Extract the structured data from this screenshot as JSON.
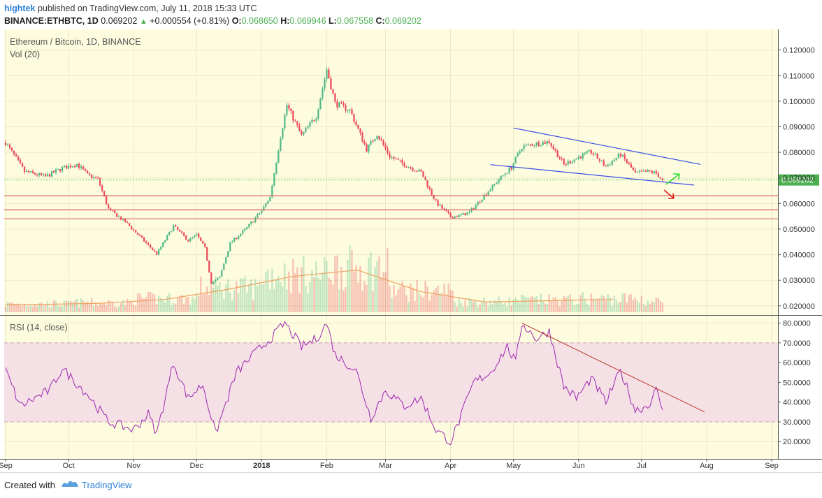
{
  "header": {
    "author": "hightek",
    "published_text": "published on TradingView.com, July 11, 2018 15:33 UTC",
    "symbol_line": "BINANCE:ETHBTC, 1D",
    "last": "0.069202",
    "change": "+0.000554 (+0.81%)",
    "o_label": "O:",
    "o": "0.068650",
    "h_label": "H:",
    "h": "0.069946",
    "l_label": "L:",
    "l": "0.067558",
    "c_label": "C:",
    "c": "0.069202"
  },
  "footer": {
    "created_with": "Created with",
    "brand": "TradingView"
  },
  "colors": {
    "up": "#53b987",
    "down": "#eb4d5c",
    "background": "#fdfcdf",
    "rsi_line": "#9c27b0",
    "rsi_band": "#f5e0e6",
    "trendline": "#3a4ce6",
    "support": "#e06060",
    "current_price_line": "#6ecb63",
    "price_label": "#4caf50"
  },
  "chart_data": [
    {
      "type": "candlestick",
      "title": "Ethereum / Bitcoin, 1D, BINANCE",
      "volume_label": "Vol (20)",
      "x_ticks": [
        "Sep",
        "Oct",
        "Nov",
        "Dec",
        "2018",
        "Feb",
        "Mar",
        "Apr",
        "May",
        "Jun",
        "Jul",
        "Aug",
        "Sep"
      ],
      "y_ticks": [
        "0.120000",
        "0.110000",
        "0.100000",
        "0.090000",
        "0.080000",
        "0.070000",
        "0.060000",
        "0.050000",
        "0.040000",
        "0.030000",
        "0.020000"
      ],
      "ylim": [
        0.0175,
        0.127
      ],
      "current_price": "0.069202",
      "key_points": [
        {
          "date": "2017-09-01",
          "close": 0.0838
        },
        {
          "date": "2017-09-10",
          "close": 0.0725
        },
        {
          "date": "2017-09-20",
          "close": 0.0705
        },
        {
          "date": "2017-09-28",
          "close": 0.0738
        },
        {
          "date": "2017-10-05",
          "close": 0.0755
        },
        {
          "date": "2017-10-10",
          "close": 0.0712
        },
        {
          "date": "2017-10-15",
          "close": 0.0695
        },
        {
          "date": "2017-10-20",
          "close": 0.0578
        },
        {
          "date": "2017-10-28",
          "close": 0.0528
        },
        {
          "date": "2017-11-05",
          "close": 0.0462
        },
        {
          "date": "2017-11-12",
          "close": 0.0403
        },
        {
          "date": "2017-11-20",
          "close": 0.0512
        },
        {
          "date": "2017-11-27",
          "close": 0.0455
        },
        {
          "date": "2017-12-01",
          "close": 0.0478
        },
        {
          "date": "2017-12-05",
          "close": 0.0425
        },
        {
          "date": "2017-12-08",
          "close": 0.0288
        },
        {
          "date": "2017-12-12",
          "close": 0.0312
        },
        {
          "date": "2017-12-17",
          "close": 0.0445
        },
        {
          "date": "2017-12-25",
          "close": 0.0505
        },
        {
          "date": "2018-01-01",
          "close": 0.0572
        },
        {
          "date": "2018-01-05",
          "close": 0.0625
        },
        {
          "date": "2018-01-10",
          "close": 0.0862
        },
        {
          "date": "2018-01-13",
          "close": 0.0985
        },
        {
          "date": "2018-01-20",
          "close": 0.0865
        },
        {
          "date": "2018-01-27",
          "close": 0.0942
        },
        {
          "date": "2018-02-01",
          "close": 0.1125
        },
        {
          "date": "2018-02-05",
          "close": 0.0992
        },
        {
          "date": "2018-02-12",
          "close": 0.0965
        },
        {
          "date": "2018-02-20",
          "close": 0.0812
        },
        {
          "date": "2018-02-25",
          "close": 0.0872
        },
        {
          "date": "2018-03-03",
          "close": 0.0785
        },
        {
          "date": "2018-03-10",
          "close": 0.0752
        },
        {
          "date": "2018-03-18",
          "close": 0.0722
        },
        {
          "date": "2018-03-25",
          "close": 0.0605
        },
        {
          "date": "2018-04-01",
          "close": 0.0548
        },
        {
          "date": "2018-04-05",
          "close": 0.0552
        },
        {
          "date": "2018-04-10",
          "close": 0.0565
        },
        {
          "date": "2018-04-17",
          "close": 0.0632
        },
        {
          "date": "2018-04-25",
          "close": 0.0702
        },
        {
          "date": "2018-04-30",
          "close": 0.0742
        },
        {
          "date": "2018-05-05",
          "close": 0.0822
        },
        {
          "date": "2018-05-12",
          "close": 0.0835
        },
        {
          "date": "2018-05-18",
          "close": 0.0842
        },
        {
          "date": "2018-05-25",
          "close": 0.0752
        },
        {
          "date": "2018-05-31",
          "close": 0.0778
        },
        {
          "date": "2018-06-07",
          "close": 0.0802
        },
        {
          "date": "2018-06-14",
          "close": 0.0745
        },
        {
          "date": "2018-06-21",
          "close": 0.0792
        },
        {
          "date": "2018-06-28",
          "close": 0.0718
        },
        {
          "date": "2018-07-05",
          "close": 0.0725
        },
        {
          "date": "2018-07-08",
          "close": 0.0718
        },
        {
          "date": "2018-07-11",
          "close": 0.0692
        }
      ],
      "volume_ma": [
        0.0205,
        0.021,
        0.0225,
        0.0265,
        0.0315,
        0.034,
        0.0255,
        0.0215,
        0.022,
        0.0225,
        0.0215,
        0.021
      ]
    },
    {
      "type": "line",
      "title": "RSI (14, close)",
      "y_ticks": [
        "80.0000",
        "70.0000",
        "60.0000",
        "50.0000",
        "40.0000",
        "30.0000",
        "20.0000"
      ],
      "ylim": [
        13,
        82
      ],
      "band": [
        30,
        70
      ],
      "key_points": [
        {
          "date": "2017-09-01",
          "value": 56
        },
        {
          "date": "2017-09-08",
          "value": 38
        },
        {
          "date": "2017-09-22",
          "value": 46
        },
        {
          "date": "2017-09-28",
          "value": 57
        },
        {
          "date": "2017-10-10",
          "value": 44
        },
        {
          "date": "2017-10-20",
          "value": 30
        },
        {
          "date": "2017-11-01",
          "value": 26
        },
        {
          "date": "2017-11-08",
          "value": 34
        },
        {
          "date": "2017-11-12",
          "value": 24
        },
        {
          "date": "2017-11-20",
          "value": 60
        },
        {
          "date": "2017-11-27",
          "value": 42
        },
        {
          "date": "2017-12-04",
          "value": 49
        },
        {
          "date": "2017-12-10",
          "value": 24
        },
        {
          "date": "2017-12-20",
          "value": 55
        },
        {
          "date": "2017-12-28",
          "value": 64
        },
        {
          "date": "2018-01-05",
          "value": 72
        },
        {
          "date": "2018-01-12",
          "value": 80
        },
        {
          "date": "2018-01-20",
          "value": 68
        },
        {
          "date": "2018-01-27",
          "value": 72
        },
        {
          "date": "2018-02-01",
          "value": 80
        },
        {
          "date": "2018-02-05",
          "value": 64
        },
        {
          "date": "2018-02-15",
          "value": 56
        },
        {
          "date": "2018-02-22",
          "value": 32
        },
        {
          "date": "2018-03-01",
          "value": 46
        },
        {
          "date": "2018-03-10",
          "value": 38
        },
        {
          "date": "2018-03-18",
          "value": 42
        },
        {
          "date": "2018-03-25",
          "value": 26
        },
        {
          "date": "2018-04-01",
          "value": 20
        },
        {
          "date": "2018-04-05",
          "value": 30
        },
        {
          "date": "2018-04-12",
          "value": 50
        },
        {
          "date": "2018-04-20",
          "value": 55
        },
        {
          "date": "2018-04-28",
          "value": 68
        },
        {
          "date": "2018-05-02",
          "value": 60
        },
        {
          "date": "2018-05-05",
          "value": 80
        },
        {
          "date": "2018-05-12",
          "value": 72
        },
        {
          "date": "2018-05-18",
          "value": 76
        },
        {
          "date": "2018-05-25",
          "value": 48
        },
        {
          "date": "2018-05-31",
          "value": 42
        },
        {
          "date": "2018-06-07",
          "value": 52
        },
        {
          "date": "2018-06-14",
          "value": 40
        },
        {
          "date": "2018-06-21",
          "value": 56
        },
        {
          "date": "2018-06-28",
          "value": 36
        },
        {
          "date": "2018-07-04",
          "value": 38
        },
        {
          "date": "2018-07-08",
          "value": 46
        },
        {
          "date": "2018-07-11",
          "value": 36
        }
      ]
    }
  ]
}
